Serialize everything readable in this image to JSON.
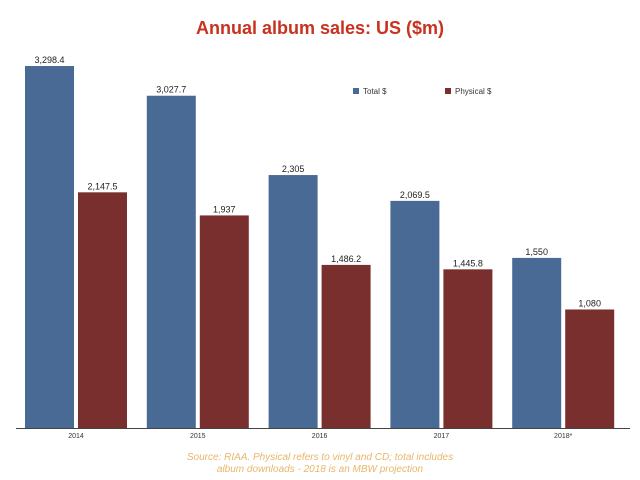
{
  "chart_data": {
    "type": "bar",
    "title": "Annual album sales: US ($m)",
    "categories": [
      "2014",
      "2015",
      "2016",
      "2017",
      "2018*"
    ],
    "series": [
      {
        "name": "Total $",
        "color": "#4a6a96",
        "values": [
          3298.4,
          3027.7,
          2305,
          2069.5,
          1550
        ],
        "labels": [
          "3,298.4",
          "3,027.7",
          "2,305",
          "2,069.5",
          "1,550"
        ]
      },
      {
        "name": "Physical $",
        "color": "#7a2f2f",
        "values": [
          2147.5,
          1937,
          1486.2,
          1445.8,
          1080
        ],
        "labels": [
          "2,147.5",
          "1,937",
          "1,486.2",
          "1,445.8",
          "1,080"
        ]
      }
    ],
    "xlabel": "",
    "ylabel": "",
    "ylim": [
      0,
      3900
    ],
    "grid": false,
    "legend": "top-right"
  },
  "source_note": [
    "Source: RIAA. Physical refers to vinyl and CD; total includes",
    "album downloads - 2018 is an MBW projection"
  ]
}
